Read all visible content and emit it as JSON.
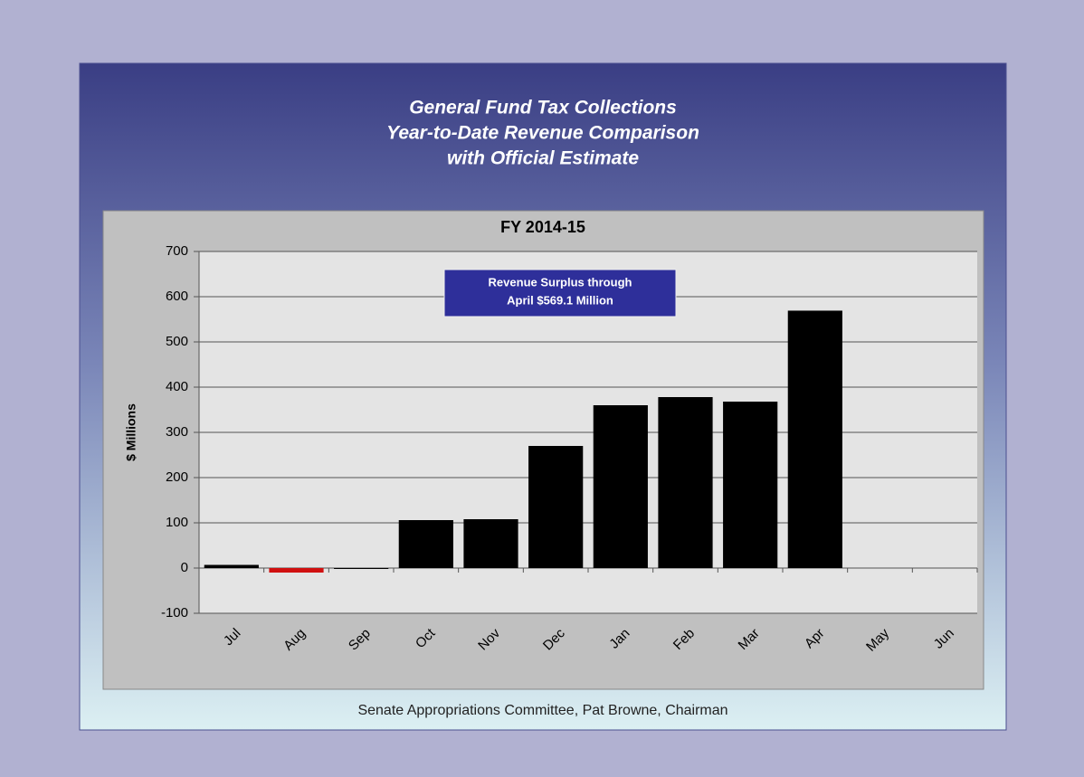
{
  "chart_data": {
    "type": "bar",
    "title": [
      "General Fund Tax Collections",
      "Year-to-Date Revenue Comparison",
      "with Official Estimate"
    ],
    "subtitle": "FY 2014-15",
    "y_label": "$ Millions",
    "annotation": [
      "Revenue Surplus through",
      "April $569.1 Million"
    ],
    "footer": "Senate Appropriations Committee, Pat Browne, Chairman",
    "categories": [
      "Jul",
      "Aug",
      "Sep",
      "Oct",
      "Nov",
      "Dec",
      "Jan",
      "Feb",
      "Mar",
      "Apr",
      "May",
      "Jun"
    ],
    "values": [
      7,
      -10,
      0,
      106,
      108,
      270,
      360,
      378,
      368,
      569.1,
      null,
      null
    ],
    "colors": [
      "#000000",
      "#d01010",
      "#000000",
      "#000000",
      "#000000",
      "#000000",
      "#000000",
      "#000000",
      "#000000",
      "#000000",
      "#000000",
      "#000000"
    ],
    "ylim": [
      -100,
      700
    ],
    "yticks": [
      -100,
      0,
      100,
      200,
      300,
      400,
      500,
      600,
      700
    ],
    "grid": true
  }
}
